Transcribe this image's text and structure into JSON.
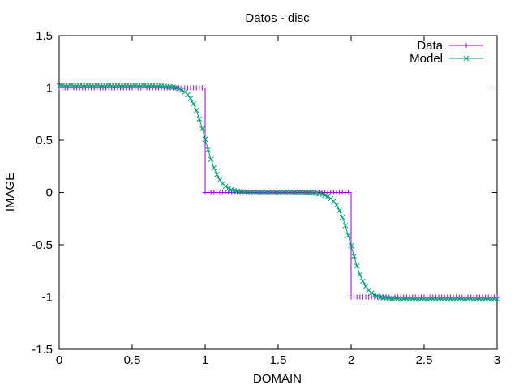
{
  "chart_data": {
    "type": "line",
    "title": "Datos - disc",
    "xlabel": "DOMAIN",
    "ylabel": "IMAGE",
    "xlim": [
      0,
      3
    ],
    "ylim": [
      -1.5,
      1.5
    ],
    "xticks": [
      0,
      0.5,
      1,
      1.5,
      2,
      2.5,
      3
    ],
    "xtick_labels": [
      "0",
      "0.5",
      "1",
      "1.5",
      "2",
      "2.5",
      "3"
    ],
    "yticks": [
      -1.5,
      -1,
      -0.5,
      0,
      0.5,
      1,
      1.5
    ],
    "ytick_labels": [
      "-1.5",
      "-1",
      "-0.5",
      "0",
      "0.5",
      "1",
      "1.5"
    ],
    "grid": false,
    "legend_position": "top-right",
    "sample_step": 0.02,
    "series": [
      {
        "name": "Data",
        "color": "#9400d3",
        "marker": "plus",
        "description": "step function: 1 on [0,1), 0 on [1,2), -1 on [2,3]",
        "steps": [
          {
            "from": 0,
            "to": 1,
            "y": 1
          },
          {
            "from": 1,
            "to": 2,
            "y": 0
          },
          {
            "from": 2,
            "to": 3,
            "y": -1
          }
        ]
      },
      {
        "name": "Model",
        "color": "#009e73",
        "marker": "cross",
        "description": "smooth sigmoid fit through the two discontinuities",
        "plateau_levels": [
          1.02,
          0.0,
          -1.02
        ],
        "transition_centers": [
          1.0,
          2.0
        ],
        "transition_width": 0.05
      }
    ]
  }
}
